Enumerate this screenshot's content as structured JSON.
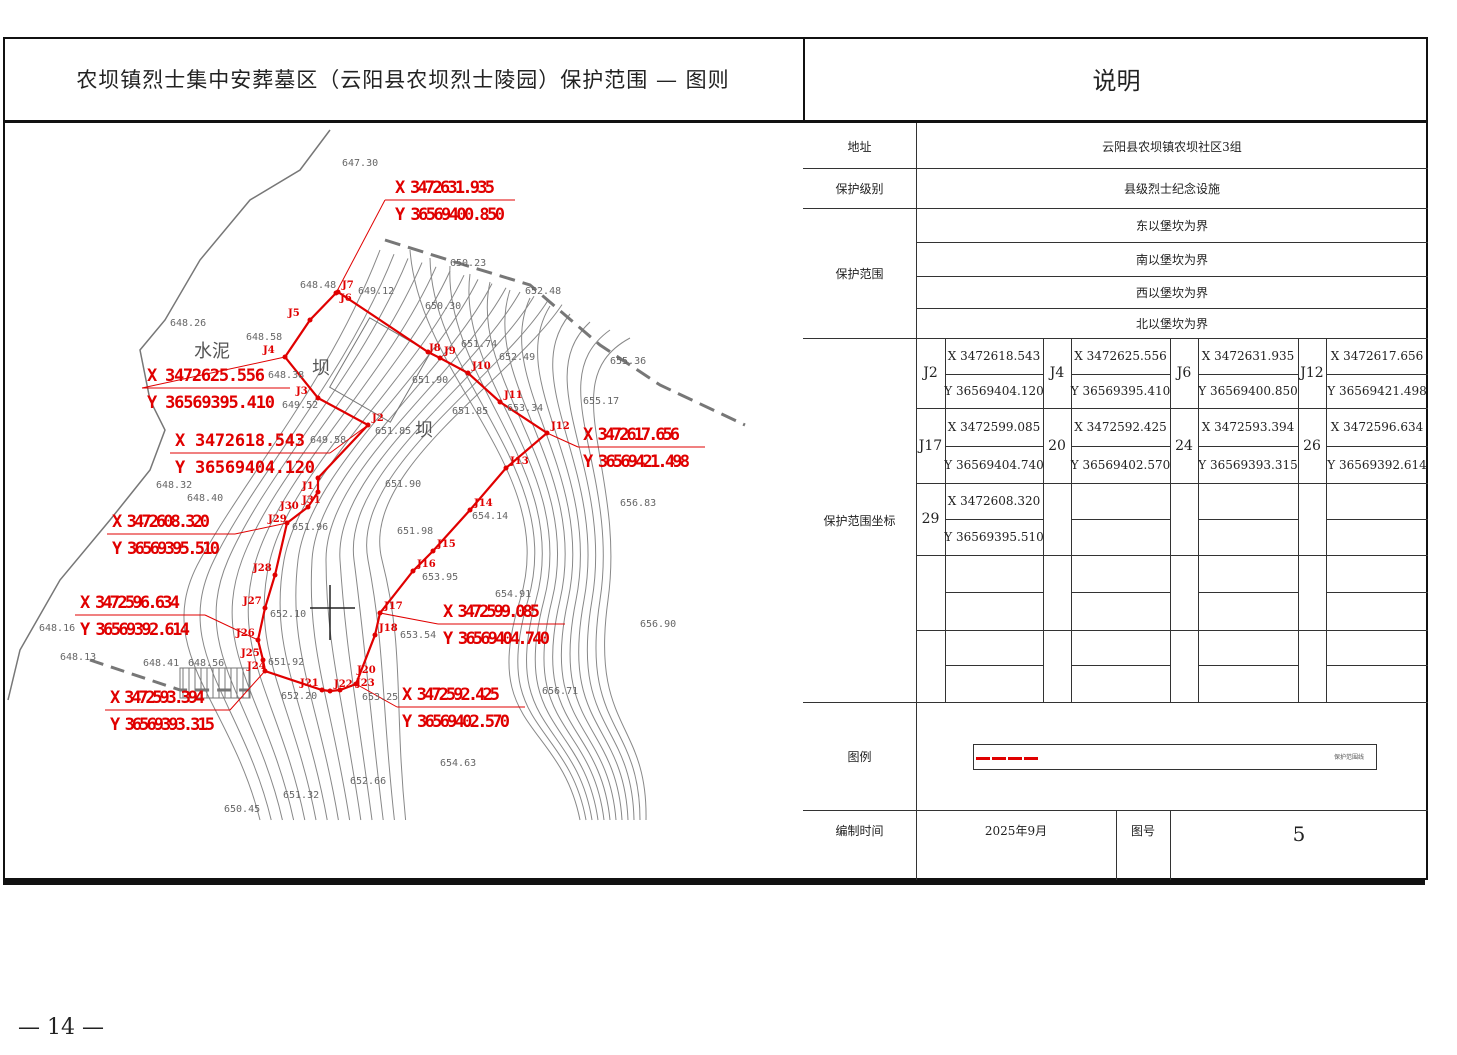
{
  "header": {
    "title": "农坝镇烈士集中安葬墓区（云阳县农坝烈士陵园）保护范围 —  图则",
    "notes_title": "说明"
  },
  "table": {
    "address_label": "地址",
    "address_value": "云阳县农坝镇农坝社区3组",
    "level_label": "保护级别",
    "level_value": "县级烈士纪念设施",
    "range_label": "保护范围",
    "range_values": [
      "东以堡坎为界",
      "南以堡坎为界",
      "西以堡坎为界",
      "北以堡坎为界"
    ],
    "coords_label": "保护范围坐标",
    "coords": [
      {
        "point": "J2",
        "x": "X 3472618.543",
        "y": "Y 36569404.120"
      },
      {
        "point": "J4",
        "x": "X 3472625.556",
        "y": "Y 36569395.410"
      },
      {
        "point": "J6",
        "x": "X 3472631.935",
        "y": "Y 36569400.850"
      },
      {
        "point": "J12",
        "x": "X 3472617.656",
        "y": "Y 36569421.498"
      },
      {
        "point": "J17",
        "x": "X 3472599.085",
        "y": "Y 36569404.740"
      },
      {
        "point": "20",
        "x": "X 3472592.425",
        "y": "Y 36569402.570"
      },
      {
        "point": "24",
        "x": "X 3472593.394",
        "y": "Y 36569393.315"
      },
      {
        "point": "26",
        "x": "X 3472596.634",
        "y": "Y 36569392.614"
      },
      {
        "point": "29",
        "x": "X 3472608.320",
        "y": "Y 36569395.510"
      }
    ],
    "legend_label": "图例",
    "legend_item": "保护范围线",
    "legend_color": "#e00000",
    "date_label": "编制时间",
    "date_value": "2025年9月",
    "figure_no_label": "图号",
    "figure_no_value": "5"
  },
  "map": {
    "boundary_color": "#e00000",
    "points": [
      "J7",
      "J6",
      "J5",
      "J4",
      "J3",
      "J2",
      "J1",
      "J31",
      "J30",
      "J29",
      "J28",
      "J27",
      "J26",
      "J25",
      "J24",
      "J21",
      "J22",
      "J23",
      "J20",
      "J18",
      "J17",
      "J16",
      "J15",
      "J14",
      "J13",
      "J12",
      "J11",
      "J10",
      "J9",
      "J8"
    ],
    "callouts": [
      {
        "x": "X 3472631.935",
        "y": "Y 36569400.850"
      },
      {
        "x": "X 3472625.556",
        "y": "Y 36569395.410"
      },
      {
        "x": "X 3472618.543",
        "y": "Y 36569404.120"
      },
      {
        "x": "X 3472617.656",
        "y": "Y 36569421.498"
      },
      {
        "x": "X 3472608.320",
        "y": "Y 36569395.510"
      },
      {
        "x": "X 3472596.634",
        "y": "Y 36569392.614"
      },
      {
        "x": "X 3472599.085",
        "y": "Y 36569404.740"
      },
      {
        "x": "X 3472593.394",
        "y": "Y 36569393.315"
      },
      {
        "x": "X 3472592.425",
        "y": "Y 36569402.570"
      }
    ],
    "elevations": [
      "647.30",
      "650.23",
      "652.48",
      "648.26",
      "648.58",
      "648.38",
      "649.52",
      "651.85",
      "649.58",
      "648.32",
      "648.40",
      "651.96",
      "651.90",
      "651.98",
      "650.30",
      "651.74",
      "652.49",
      "651.90",
      "651.85",
      "653.34",
      "655.36",
      "655.17",
      "656.83",
      "654.14",
      "653.95",
      "654.91",
      "656.90",
      "648.16",
      "648.13",
      "648.41",
      "648.56",
      "652.10",
      "651.92",
      "652.20",
      "653.25",
      "656.71",
      "654.63",
      "652.66",
      "651.32",
      "650.45",
      "649.12",
      "648.48",
      "653.54"
    ],
    "place_labels": [
      "水泥",
      "坝",
      "坝"
    ]
  },
  "footer": {
    "page": "— 14 —"
  }
}
